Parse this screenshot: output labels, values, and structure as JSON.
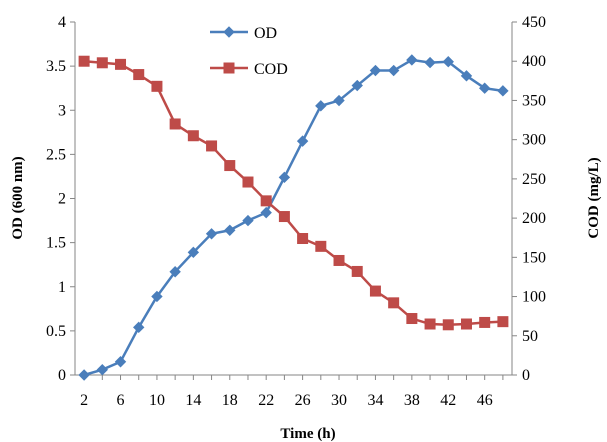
{
  "chart_data": {
    "type": "line",
    "title": "",
    "xlabel": "Time (h)",
    "ylabel_left": "OD (600 nm)",
    "ylabel_right": "COD (mg/L)",
    "x": [
      2,
      4,
      6,
      8,
      10,
      12,
      14,
      16,
      18,
      20,
      22,
      24,
      26,
      28,
      30,
      32,
      34,
      36,
      38,
      40,
      42,
      44,
      46,
      48
    ],
    "x_tick_labels": [
      "2",
      "6",
      "10",
      "14",
      "18",
      "22",
      "26",
      "30",
      "34",
      "38",
      "42",
      "46"
    ],
    "y_left_ticks": [
      "0",
      "0.5",
      "1",
      "1.5",
      "2",
      "2.5",
      "3",
      "3.5",
      "4"
    ],
    "y_right_ticks": [
      "0",
      "50",
      "100",
      "150",
      "200",
      "250",
      "300",
      "350",
      "400",
      "450"
    ],
    "y_left_range": [
      0,
      4
    ],
    "y_right_range": [
      0,
      450
    ],
    "series": [
      {
        "name": "OD",
        "axis": "left",
        "color": "#4a7ebb",
        "marker": "diamond",
        "values": [
          0,
          0.06,
          0.15,
          0.54,
          0.89,
          1.17,
          1.39,
          1.6,
          1.64,
          1.75,
          1.84,
          2.24,
          2.65,
          3.05,
          3.11,
          3.28,
          3.45,
          3.45,
          3.57,
          3.54,
          3.55,
          3.39,
          3.25,
          3.22
        ]
      },
      {
        "name": "COD",
        "axis": "right",
        "color": "#be4b48",
        "marker": "square",
        "values": [
          400,
          398,
          396,
          383,
          368,
          320,
          305,
          292,
          267,
          246,
          222,
          202,
          174,
          164,
          146,
          132,
          107,
          92,
          72,
          65,
          64,
          65,
          67,
          68
        ]
      }
    ],
    "legend": "top-center",
    "grid": false
  }
}
